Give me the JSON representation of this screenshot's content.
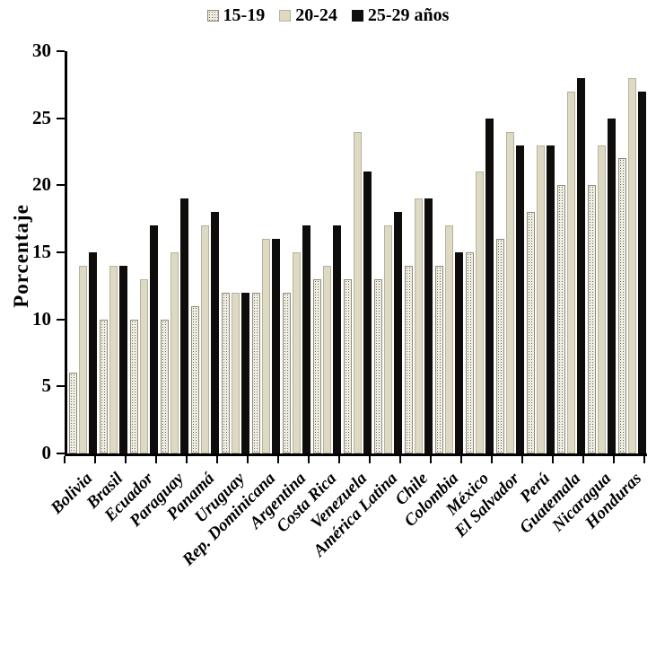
{
  "chart_data": {
    "type": "bar",
    "title": "",
    "xlabel": "",
    "ylabel": "Porcentaje",
    "ylim": [
      0,
      30
    ],
    "yticks": [
      "0",
      "5",
      "10",
      "15",
      "20",
      "25",
      "30"
    ],
    "grid": false,
    "legend_position": "top",
    "categories": [
      "Bolivia",
      "Brasil",
      "Ecuador",
      "Paraguay",
      "Panamá",
      "Uruguay",
      "Rep. Dominicana",
      "Argentina",
      "Costa Rica",
      "Venezuela",
      "América Latina",
      "Chile",
      "Colombia",
      "México",
      "El Salvador",
      "Perú",
      "Guatemala",
      "Nicaragua",
      "Honduras"
    ],
    "series": [
      {
        "name": "15-19",
        "style": "gray-hatched",
        "color": "#b5b1a4",
        "values": [
          6,
          10,
          10,
          10,
          11,
          12,
          12,
          12,
          13,
          13,
          13,
          14,
          14,
          15,
          16,
          18,
          20,
          20,
          22
        ]
      },
      {
        "name": "20-24",
        "style": "tan-solid",
        "color": "#ded9c3",
        "values": [
          14,
          14,
          13,
          15,
          17,
          12,
          16,
          15,
          14,
          24,
          17,
          19,
          17,
          21,
          24,
          23,
          27,
          23,
          28
        ]
      },
      {
        "name": "25-29 años",
        "style": "black-solid",
        "color": "#0e0d0b",
        "values": [
          15,
          14,
          17,
          19,
          18,
          12,
          16,
          17,
          17,
          21,
          18,
          19,
          15,
          25,
          23,
          23,
          28,
          25,
          27
        ]
      }
    ]
  }
}
